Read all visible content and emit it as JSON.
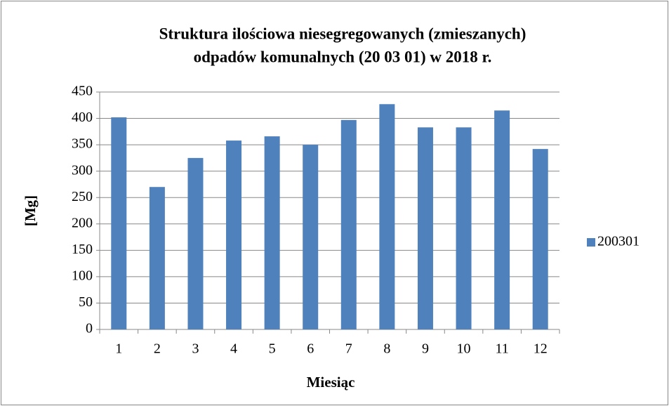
{
  "chart_data": {
    "type": "bar",
    "title": [
      "Struktura ilościowa niesegregowanych (zmieszanych)",
      "odpadów komunalnych (20 03 01) w 2018 r."
    ],
    "x_label": "Miesiąc",
    "y_label": "[Mg]",
    "categories": [
      "1",
      "2",
      "3",
      "4",
      "5",
      "6",
      "7",
      "8",
      "9",
      "10",
      "11",
      "12"
    ],
    "series": [
      {
        "name": "200301",
        "color": "#4f81bd",
        "values": [
          402,
          270,
          325,
          358,
          366,
          350,
          397,
          427,
          383,
          383,
          415,
          342
        ]
      }
    ],
    "ylim": [
      0,
      450
    ],
    "yticks": [
      0,
      50,
      100,
      150,
      200,
      250,
      300,
      350,
      400,
      450
    ],
    "grid": true,
    "legend": "right"
  }
}
